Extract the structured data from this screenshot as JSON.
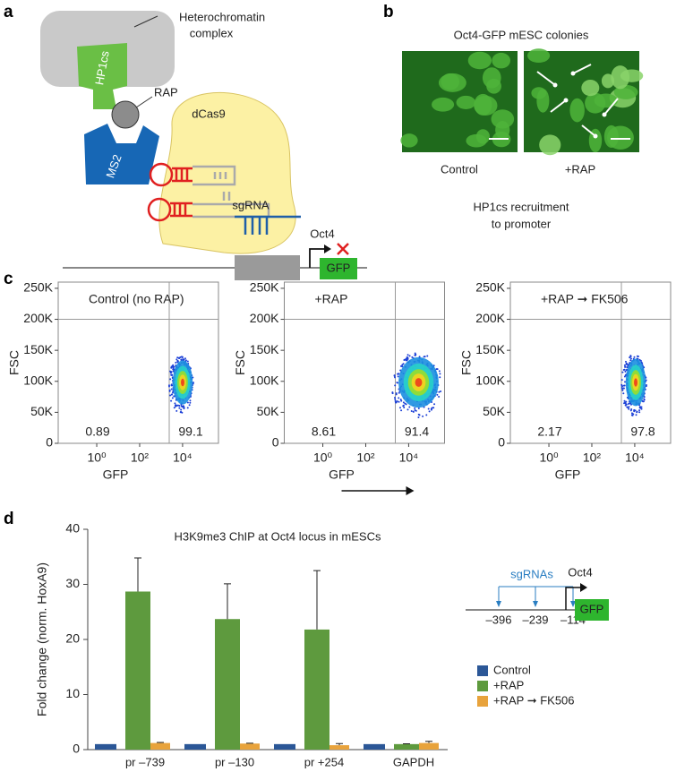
{
  "panel_labels": [
    "a",
    "b",
    "c",
    "d"
  ],
  "panel_a": {
    "complex": [
      "Heterochromatin",
      "complex"
    ],
    "hp1": "HP1cs",
    "rap": "RAP",
    "dcas9": "dCas9",
    "ms2": "MS2",
    "sgrna": "sgRNA",
    "gene": "Oct4",
    "reporter": "GFP"
  },
  "panel_b": {
    "title": "Oct4-GFP mESC colonies",
    "images": [
      "Control",
      "+RAP"
    ],
    "caption": [
      "HP1cs recruitment",
      "to promoter"
    ]
  },
  "panel_c": {
    "x_label": "GFP",
    "y_label": "FSC",
    "log_x": true,
    "xlim": [
      0.016,
      470000
    ],
    "ylim": [
      0,
      260000
    ],
    "xticks": [
      {
        "value": 1,
        "label": "10⁰"
      },
      {
        "value": 100,
        "label": "10²"
      },
      {
        "value": 10000,
        "label": "10⁴"
      }
    ],
    "yticks": [
      0,
      {
        "value": 50000,
        "label": "50K"
      },
      {
        "value": 100000,
        "label": "100K"
      },
      {
        "value": 150000,
        "label": "150K"
      },
      {
        "value": 200000,
        "label": "200K"
      },
      {
        "value": 250000,
        "label": "250K"
      }
    ],
    "plots": [
      {
        "title": "Control (no RAP)",
        "left_percent": 0.89,
        "right_percent": 99.1
      },
      {
        "title": "+RAP",
        "left_percent": 8.61,
        "right_percent": 91.4
      },
      {
        "title": "+RAP ➞ FK506",
        "left_percent": 2.17,
        "right_percent": 97.8
      }
    ]
  },
  "panel_d": {
    "type": "bar",
    "title": "H3K9me3 ChIP at Oct4 locus in mESCs",
    "y_label": "Fold change (norm. HoxA9)",
    "categories": [
      "pr –739",
      "pr –130",
      "pr +254",
      "GAPDH"
    ],
    "ylim": [
      0,
      40
    ],
    "yticks": [
      0,
      10,
      20,
      30,
      40
    ],
    "series": [
      {
        "name": "Control",
        "color": "#2b5797",
        "values": [
          1,
          1,
          1,
          1
        ]
      },
      {
        "name": "+RAP",
        "color": "#5e9a3e",
        "values": [
          28.7,
          23.7,
          21.8,
          1.0
        ],
        "errors": [
          6.1,
          6.4,
          10.7,
          0.05
        ]
      },
      {
        "name": "+RAP ➞ FK506",
        "color": "#e8a33c",
        "values": [
          1.2,
          1.1,
          0.8,
          1.2
        ],
        "errors": [
          0.1,
          0.05,
          0.3,
          0.3
        ]
      }
    ],
    "inset": {
      "label": "sgRNAs",
      "positions": [
        "–396",
        "–239",
        "–114"
      ],
      "gene": "Oct4",
      "reporter": "GFP"
    }
  }
}
